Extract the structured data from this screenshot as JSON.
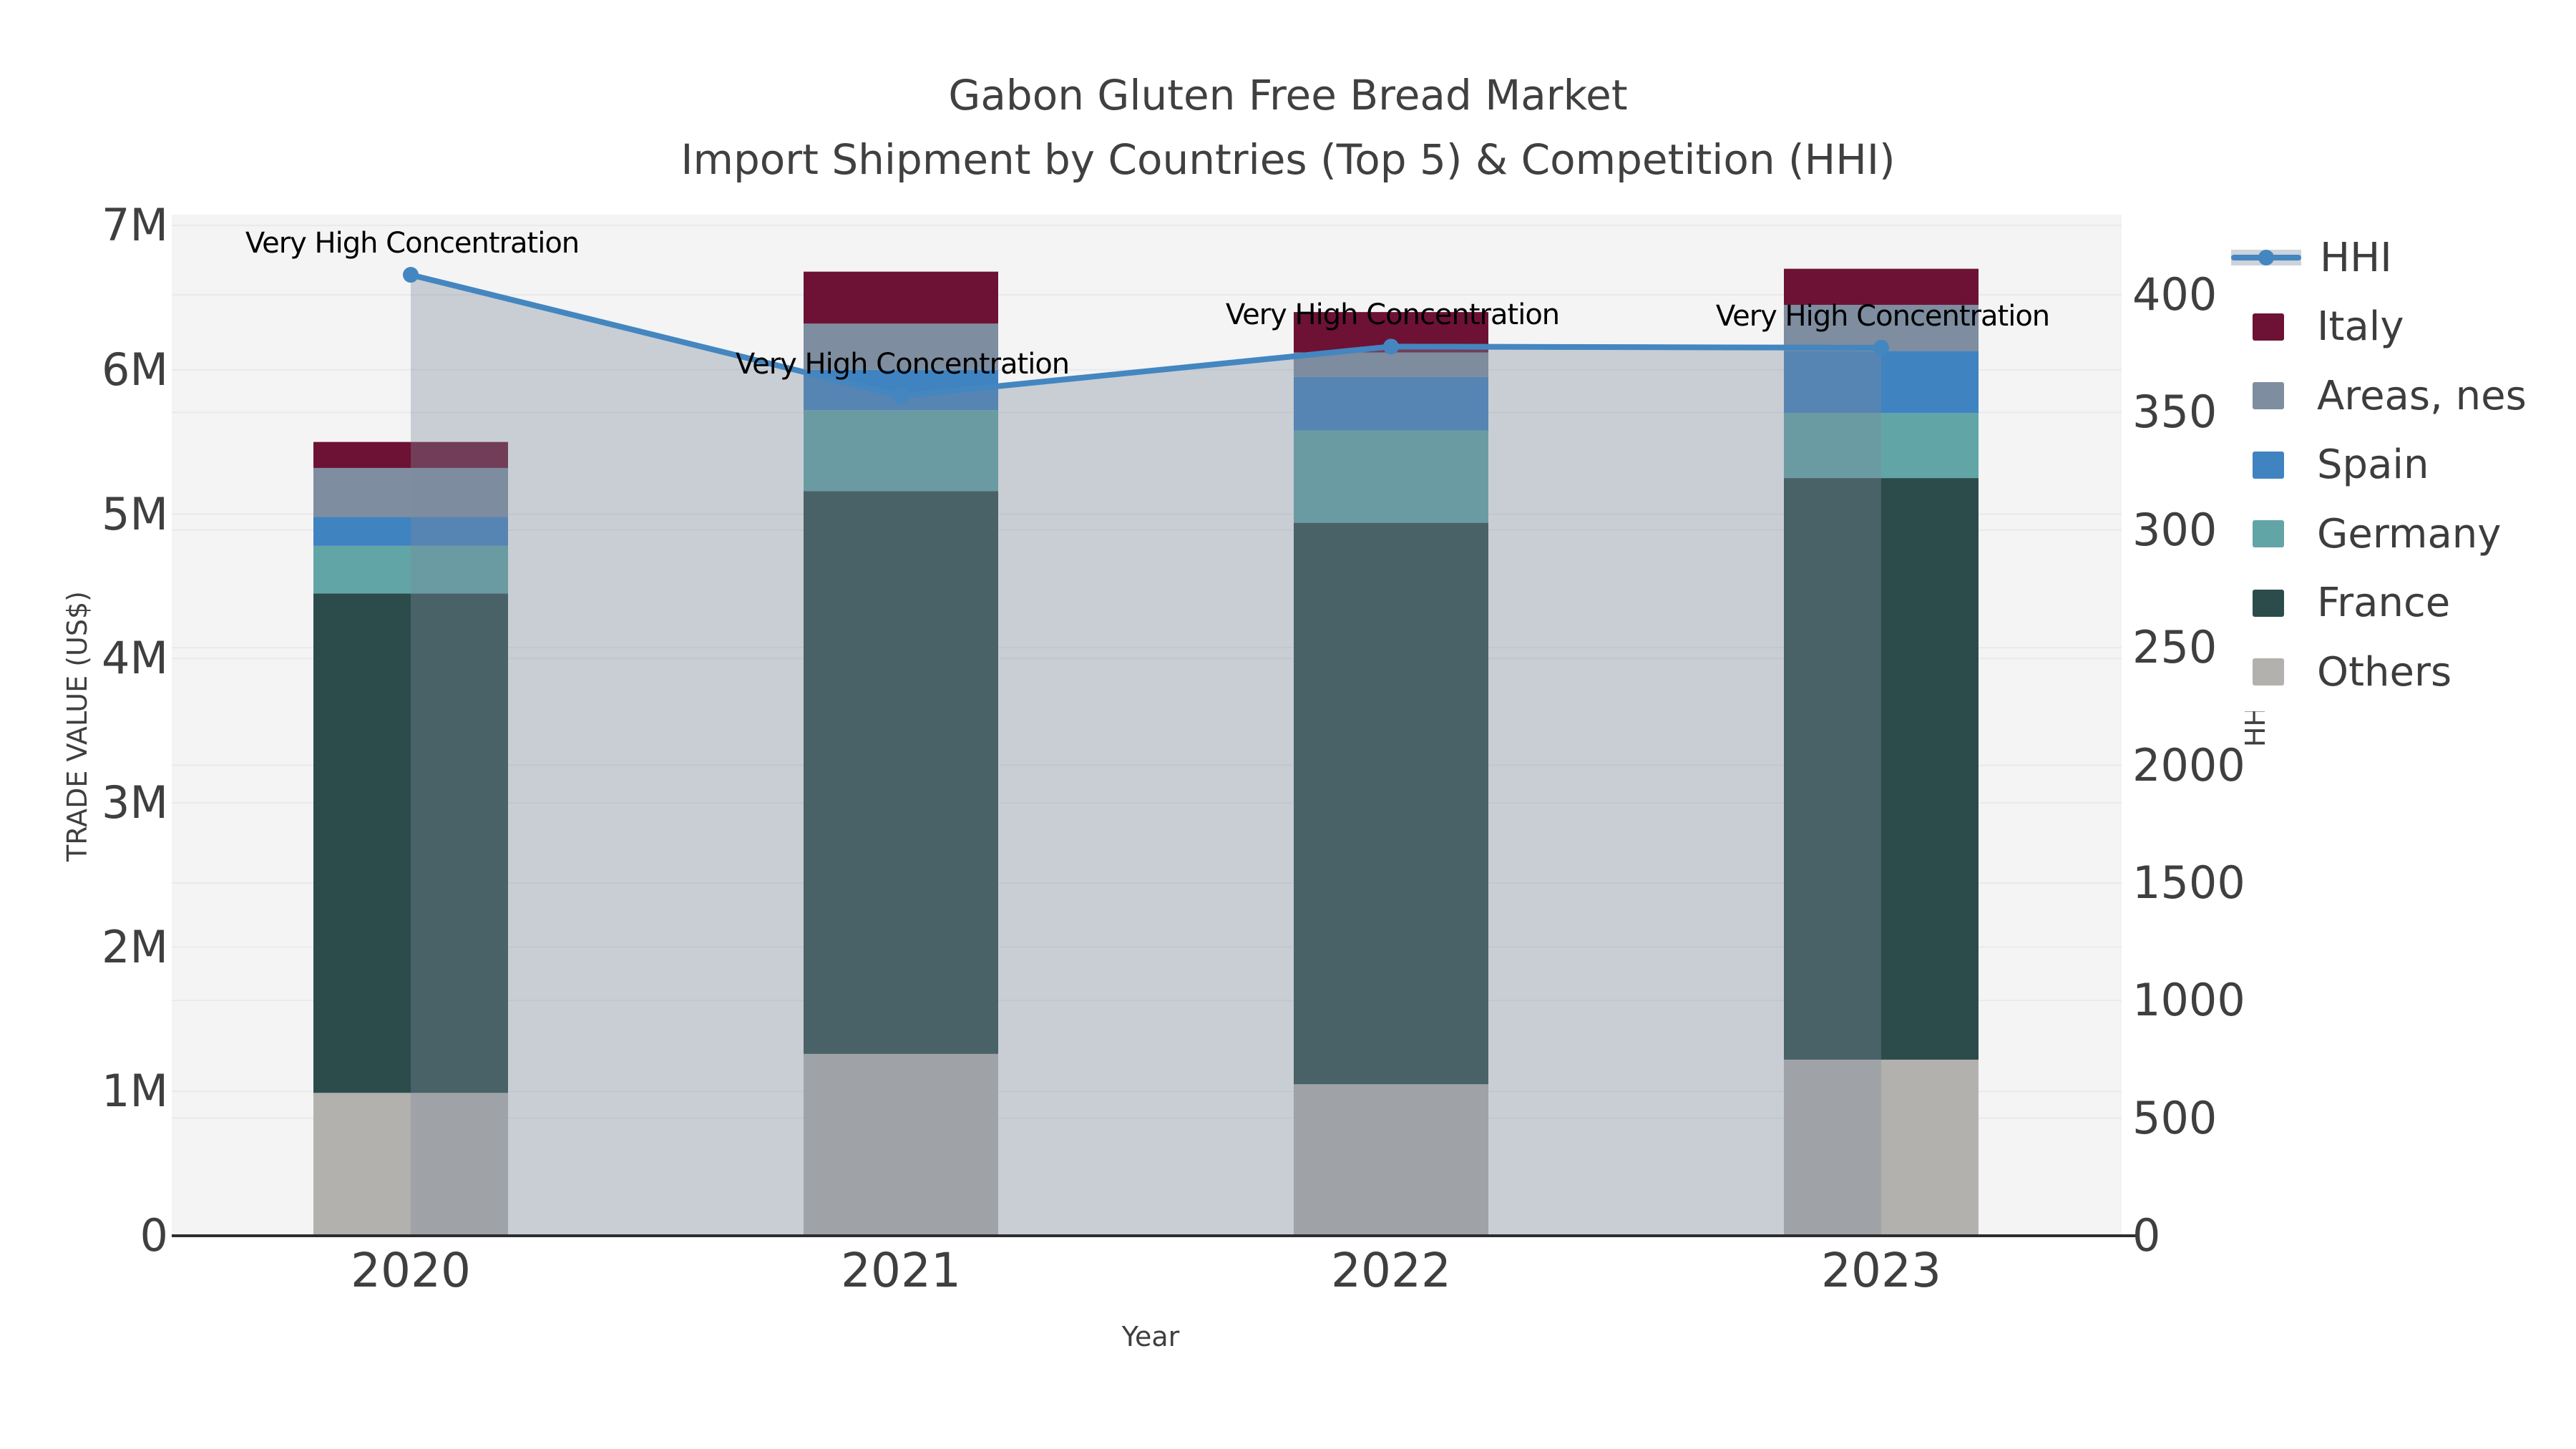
{
  "title": {
    "line1": "Gabon Gluten Free Bread Market",
    "line2": "Import Shipment by Countries (Top 5) & Competition (HHI)"
  },
  "axes": {
    "x": {
      "title": "Year",
      "ticks": [
        "2020",
        "2021",
        "2022",
        "2023"
      ]
    },
    "y_left": {
      "title": "TRADE VALUE (US$)",
      "ticks": [
        "0",
        "1M",
        "2M",
        "3M",
        "4M",
        "5M",
        "6M",
        "7M"
      ]
    },
    "y_right": {
      "title": "HHI",
      "ticks": [
        "0",
        "500",
        "1000",
        "1500",
        "2000",
        "2500",
        "3000",
        "3500",
        "4000"
      ]
    }
  },
  "legend": {
    "items": [
      {
        "label": "HHI",
        "type": "line",
        "color": "#4486c0"
      },
      {
        "label": "Italy",
        "type": "swatch",
        "color": "#6d1234"
      },
      {
        "label": "Areas, nes",
        "type": "swatch",
        "color": "#7e8da0"
      },
      {
        "label": "Spain",
        "type": "swatch",
        "color": "#4083c1"
      },
      {
        "label": "Germany",
        "type": "swatch",
        "color": "#62a5a7"
      },
      {
        "label": "France",
        "type": "swatch",
        "color": "#2c4c4c"
      },
      {
        "label": "Others",
        "type": "swatch",
        "color": "#b2b1ae"
      }
    ]
  },
  "annotations": {
    "text": "Very High Concentration"
  },
  "chart_data": {
    "type": [
      "bar",
      "line"
    ],
    "categories": [
      "2020",
      "2021",
      "2022",
      "2023"
    ],
    "bar_unit": "US$ millions",
    "series": [
      {
        "name": "Others",
        "values": [
          0.99,
          1.26,
          1.05,
          1.22
        ],
        "color": "#b2b1ae"
      },
      {
        "name": "France",
        "values": [
          3.46,
          3.9,
          3.89,
          4.03
        ],
        "color": "#2c4c4c"
      },
      {
        "name": "Germany",
        "values": [
          0.33,
          0.56,
          0.64,
          0.45
        ],
        "color": "#62a5a7"
      },
      {
        "name": "Spain",
        "values": [
          0.2,
          0.28,
          0.37,
          0.43
        ],
        "color": "#4083c1"
      },
      {
        "name": "Areas, nes",
        "values": [
          0.34,
          0.32,
          0.17,
          0.32
        ],
        "color": "#7e8da0"
      },
      {
        "name": "Italy",
        "values": [
          0.18,
          0.36,
          0.28,
          0.25
        ],
        "color": "#6d1234"
      }
    ],
    "bar_totals": [
      5.5,
      6.68,
      6.4,
      6.7
    ],
    "hhi": {
      "name": "HHI",
      "values": [
        4085,
        3570,
        3780,
        3775
      ],
      "color": "#4486c0",
      "area_fill": "rgba(125,138,155,0.36)",
      "annotation_per_point": [
        "Very High Concentration",
        "Very High Concentration",
        "Very High Concentration",
        "Very High Concentration"
      ]
    },
    "title": "Gabon Gluten Free Bread Market — Import Shipment by Countries (Top 5) & Competition (HHI)",
    "xlabel": "Year",
    "ylabel": "TRADE VALUE (US$)",
    "ylabel2": "HHI",
    "ylim_left": [
      0,
      7000000
    ],
    "ylim_right": [
      0,
      4000
    ],
    "grid": true,
    "legend_position": "right"
  }
}
